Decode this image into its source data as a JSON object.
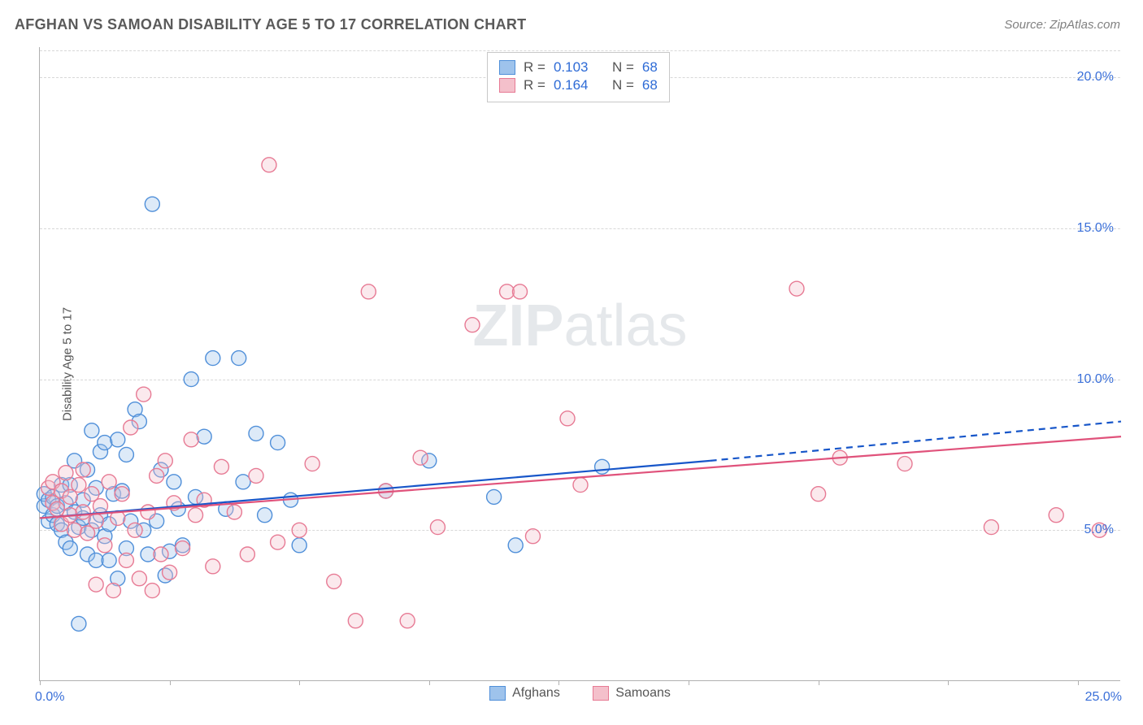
{
  "title": "AFGHAN VS SAMOAN DISABILITY AGE 5 TO 17 CORRELATION CHART",
  "source_prefix": "Source: ",
  "source_name": "ZipAtlas.com",
  "yaxis_label": "Disability Age 5 to 17",
  "watermark_bold": "ZIP",
  "watermark_rest": "atlas",
  "chart": {
    "type": "scatter-with-trend",
    "background_color": "#ffffff",
    "axis_color": "#b0b0b0",
    "grid_color": "#d8d8d8",
    "tick_label_color": "#3a6fd8",
    "text_color": "#555555",
    "xlim": [
      0,
      25
    ],
    "ylim": [
      0,
      21
    ],
    "xtick_positions": [
      0,
      3,
      6,
      9,
      12,
      15,
      18,
      21,
      24
    ],
    "ytick_gridlines": [
      5,
      10,
      15,
      20
    ],
    "ytick_labels": [
      "5.0%",
      "10.0%",
      "15.0%",
      "20.0%"
    ],
    "xlabel_min": "0.0%",
    "xlabel_max": "25.0%",
    "marker_radius": 9,
    "marker_stroke_width": 1.4,
    "marker_fill_opacity": 0.35,
    "trend_line_width": 2.2
  },
  "series": [
    {
      "name": "Afghans",
      "color_fill": "#9ec3ec",
      "color_stroke": "#4f8fd9",
      "trend_color": "#1756c9",
      "R": "0.103",
      "N": "68",
      "trend": {
        "x1": 0,
        "y1": 5.4,
        "x2_solid": 15.5,
        "y2_solid": 7.3,
        "x2_dash": 25,
        "y2_dash": 8.6
      },
      "points": [
        [
          0.1,
          5.8
        ],
        [
          0.1,
          6.2
        ],
        [
          0.2,
          5.3
        ],
        [
          0.2,
          6.0
        ],
        [
          0.3,
          5.5
        ],
        [
          0.3,
          6.1
        ],
        [
          0.4,
          5.8
        ],
        [
          0.4,
          5.2
        ],
        [
          0.5,
          6.5
        ],
        [
          0.5,
          5.0
        ],
        [
          0.6,
          4.6
        ],
        [
          0.6,
          5.9
        ],
        [
          0.7,
          6.5
        ],
        [
          0.7,
          4.4
        ],
        [
          0.8,
          7.3
        ],
        [
          0.8,
          5.6
        ],
        [
          0.9,
          5.1
        ],
        [
          0.9,
          1.9
        ],
        [
          1.0,
          6.0
        ],
        [
          1.0,
          5.4
        ],
        [
          1.1,
          7.0
        ],
        [
          1.1,
          4.2
        ],
        [
          1.2,
          8.3
        ],
        [
          1.2,
          5.0
        ],
        [
          1.3,
          4.0
        ],
        [
          1.3,
          6.4
        ],
        [
          1.4,
          7.6
        ],
        [
          1.4,
          5.5
        ],
        [
          1.5,
          4.8
        ],
        [
          1.5,
          7.9
        ],
        [
          1.6,
          5.2
        ],
        [
          1.6,
          4.0
        ],
        [
          1.7,
          6.2
        ],
        [
          1.8,
          3.4
        ],
        [
          1.8,
          8.0
        ],
        [
          1.9,
          6.3
        ],
        [
          2.0,
          4.4
        ],
        [
          2.0,
          7.5
        ],
        [
          2.1,
          5.3
        ],
        [
          2.2,
          9.0
        ],
        [
          2.3,
          8.6
        ],
        [
          2.4,
          5.0
        ],
        [
          2.5,
          4.2
        ],
        [
          2.6,
          15.8
        ],
        [
          2.7,
          5.3
        ],
        [
          2.8,
          7.0
        ],
        [
          2.9,
          3.5
        ],
        [
          3.0,
          4.3
        ],
        [
          3.1,
          6.6
        ],
        [
          3.2,
          5.7
        ],
        [
          3.3,
          4.5
        ],
        [
          3.5,
          10.0
        ],
        [
          3.6,
          6.1
        ],
        [
          3.8,
          8.1
        ],
        [
          4.0,
          10.7
        ],
        [
          4.3,
          5.7
        ],
        [
          4.6,
          10.7
        ],
        [
          4.7,
          6.6
        ],
        [
          5.0,
          8.2
        ],
        [
          5.2,
          5.5
        ],
        [
          5.5,
          7.9
        ],
        [
          5.8,
          6.0
        ],
        [
          6.0,
          4.5
        ],
        [
          8.0,
          6.3
        ],
        [
          9.0,
          7.3
        ],
        [
          10.5,
          6.1
        ],
        [
          11.0,
          4.5
        ],
        [
          13.0,
          7.1
        ]
      ]
    },
    {
      "name": "Samoans",
      "color_fill": "#f4c0cb",
      "color_stroke": "#e77a94",
      "trend_color": "#e0527b",
      "R": "0.164",
      "N": "68",
      "trend": {
        "x1": 0,
        "y1": 5.4,
        "x2_solid": 25,
        "y2_solid": 8.1,
        "x2_dash": 25,
        "y2_dash": 8.1
      },
      "points": [
        [
          0.2,
          6.4
        ],
        [
          0.3,
          5.9
        ],
        [
          0.3,
          6.6
        ],
        [
          0.4,
          5.7
        ],
        [
          0.5,
          6.3
        ],
        [
          0.5,
          5.2
        ],
        [
          0.6,
          6.9
        ],
        [
          0.7,
          5.5
        ],
        [
          0.7,
          6.1
        ],
        [
          0.8,
          5.0
        ],
        [
          0.9,
          6.5
        ],
        [
          1.0,
          5.6
        ],
        [
          1.0,
          7.0
        ],
        [
          1.1,
          4.9
        ],
        [
          1.2,
          6.2
        ],
        [
          1.3,
          5.3
        ],
        [
          1.3,
          3.2
        ],
        [
          1.4,
          5.8
        ],
        [
          1.5,
          4.5
        ],
        [
          1.6,
          6.6
        ],
        [
          1.7,
          3.0
        ],
        [
          1.8,
          5.4
        ],
        [
          1.9,
          6.2
        ],
        [
          2.0,
          4.0
        ],
        [
          2.1,
          8.4
        ],
        [
          2.2,
          5.0
        ],
        [
          2.3,
          3.4
        ],
        [
          2.4,
          9.5
        ],
        [
          2.5,
          5.6
        ],
        [
          2.6,
          3.0
        ],
        [
          2.7,
          6.8
        ],
        [
          2.8,
          4.2
        ],
        [
          2.9,
          7.3
        ],
        [
          3.0,
          3.6
        ],
        [
          3.1,
          5.9
        ],
        [
          3.3,
          4.4
        ],
        [
          3.5,
          8.0
        ],
        [
          3.6,
          5.5
        ],
        [
          3.8,
          6.0
        ],
        [
          4.0,
          3.8
        ],
        [
          4.2,
          7.1
        ],
        [
          4.5,
          5.6
        ],
        [
          4.8,
          4.2
        ],
        [
          5.0,
          6.8
        ],
        [
          5.3,
          17.1
        ],
        [
          5.5,
          4.6
        ],
        [
          6.0,
          5.0
        ],
        [
          6.3,
          7.2
        ],
        [
          6.8,
          3.3
        ],
        [
          7.3,
          2.0
        ],
        [
          7.6,
          12.9
        ],
        [
          8.0,
          6.3
        ],
        [
          8.5,
          2.0
        ],
        [
          8.8,
          7.4
        ],
        [
          9.2,
          5.1
        ],
        [
          10.0,
          11.8
        ],
        [
          10.8,
          12.9
        ],
        [
          11.1,
          12.9
        ],
        [
          11.4,
          4.8
        ],
        [
          12.2,
          8.7
        ],
        [
          12.5,
          6.5
        ],
        [
          17.5,
          13.0
        ],
        [
          18.0,
          6.2
        ],
        [
          18.5,
          7.4
        ],
        [
          20.0,
          7.2
        ],
        [
          22.0,
          5.1
        ],
        [
          23.5,
          5.5
        ],
        [
          24.5,
          5.0
        ]
      ]
    }
  ],
  "legend_top_labels": {
    "R": "R =",
    "N": "N ="
  },
  "legend_bottom": [
    "Afghans",
    "Samoans"
  ]
}
